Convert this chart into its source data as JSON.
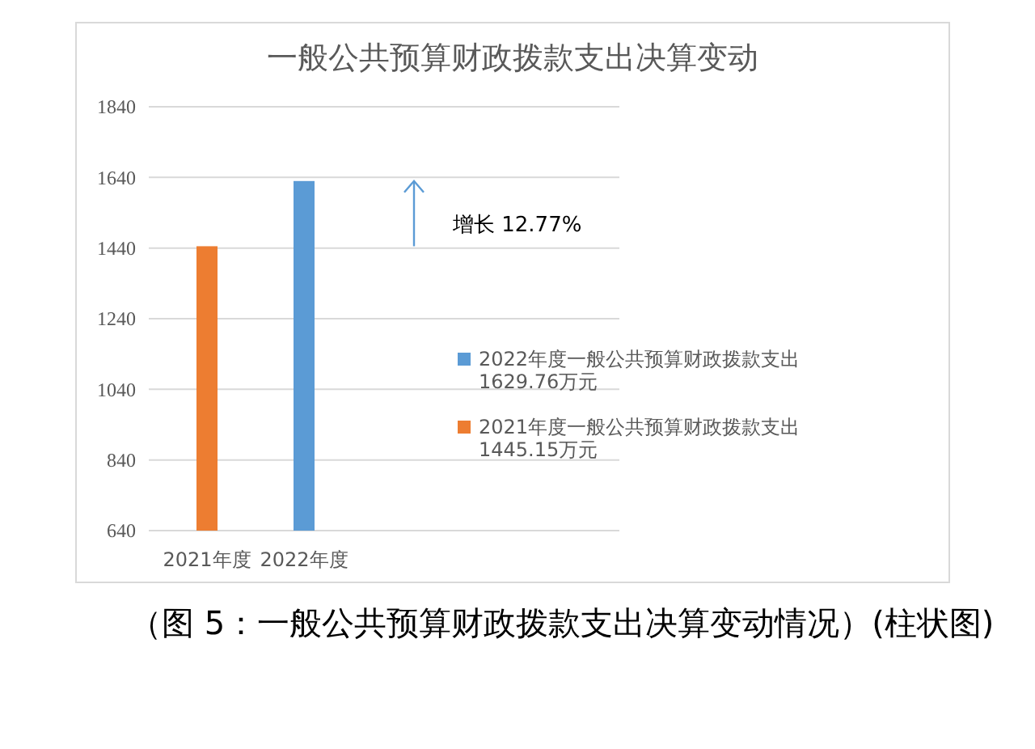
{
  "chart_data": {
    "type": "bar",
    "title": "一般公共预算财政拨款支出决算变动",
    "categories": [
      "2021年度",
      "2022年度"
    ],
    "series": [
      {
        "name": "2022年度一般公共预算财政拨款支出1629.76万元",
        "color": "#5b9bd5",
        "values": [
          null,
          1629.76
        ]
      },
      {
        "name": "2021年度一般公共预算财政拨款支出1445.15万元",
        "color": "#ed7d31",
        "values": [
          1445.15,
          null
        ]
      }
    ],
    "ylim": [
      640,
      1840
    ],
    "yticks": [
      640,
      840,
      1040,
      1240,
      1440,
      1640,
      1840
    ],
    "grid": "y",
    "legend": "right",
    "annotations": [
      "增长 12.77%",
      "（图 5：一般公共预算财政拨款支出决算变动情况）(柱状图)"
    ]
  }
}
